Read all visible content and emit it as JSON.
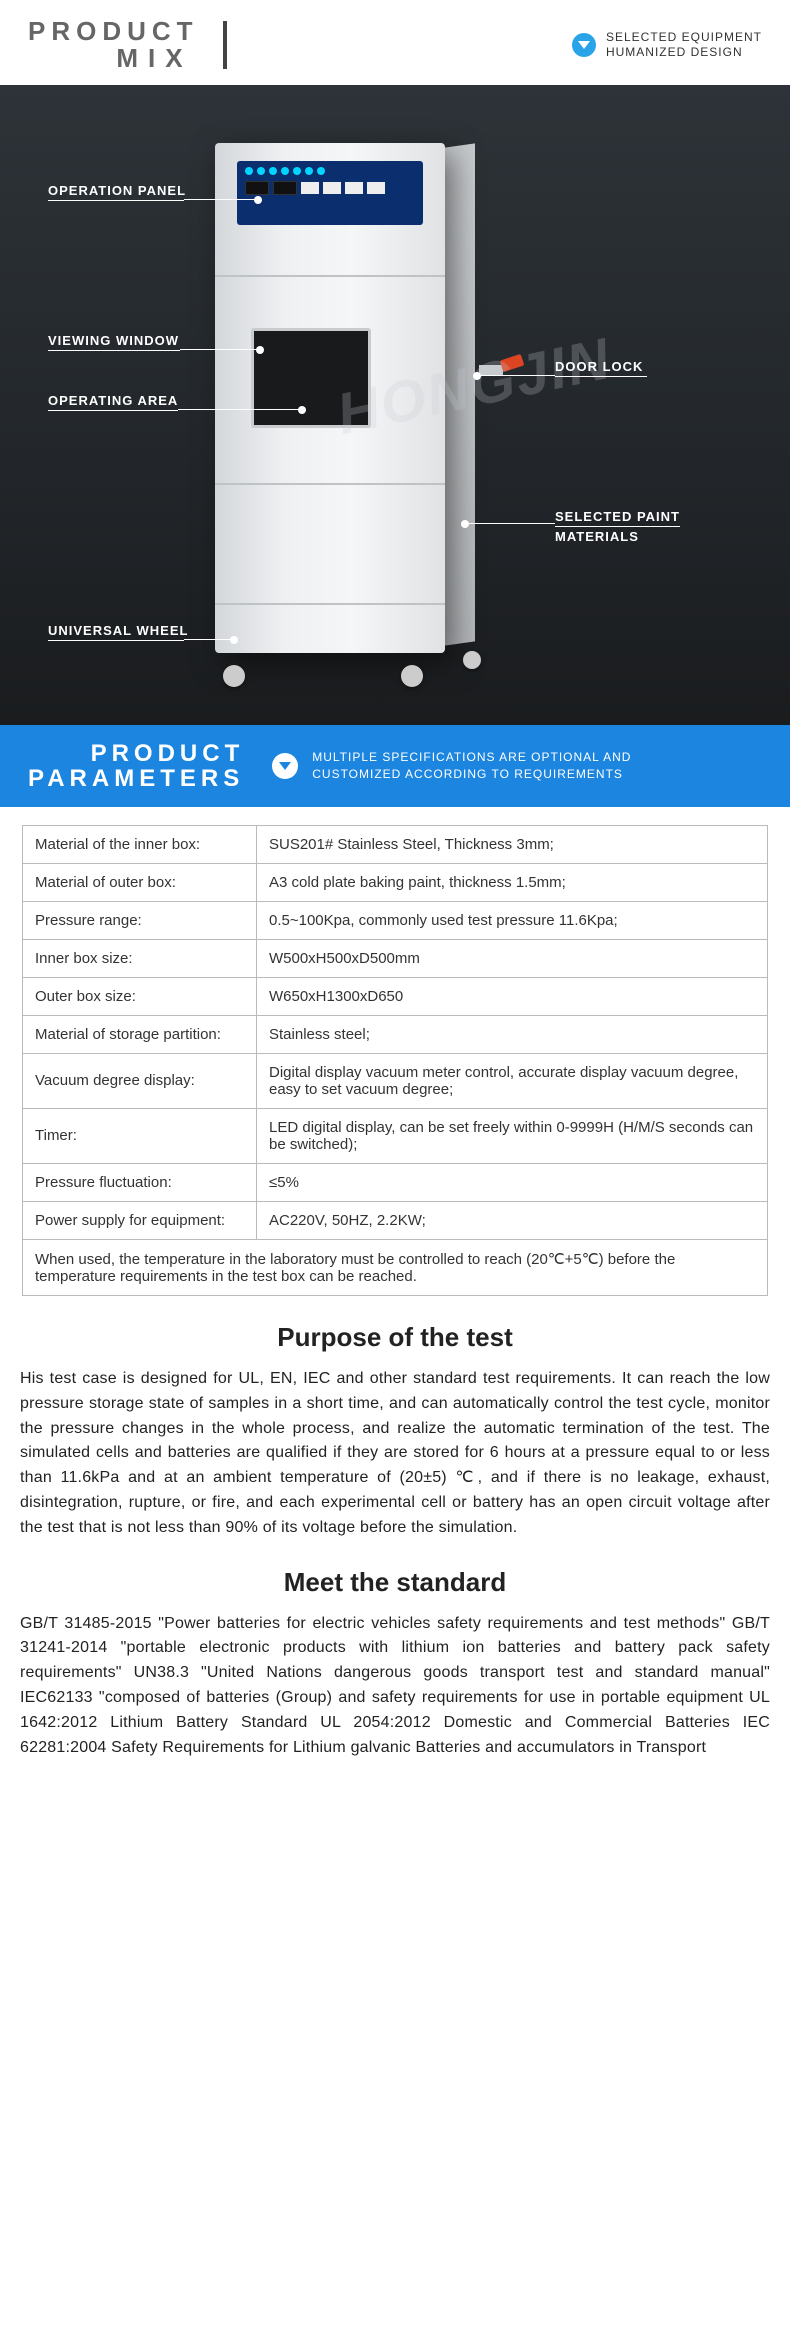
{
  "header_mix": {
    "title_line1": "PRODUCT",
    "title_line2": "MIX",
    "right_line1": "SELECTED EQUIPMENT",
    "right_line2": "HUMANIZED DESIGN"
  },
  "callouts": {
    "operation_panel": "OPERATION PANEL",
    "viewing_window": "VIEWING WINDOW",
    "operating_area": "OPERATING AREA",
    "universal_wheel": "UNIVERSAL WHEEL",
    "door_lock": "DOOR LOCK",
    "selected_paint": "SELECTED PAINT",
    "materials": "MATERIALS"
  },
  "watermark": "HONGJIN",
  "params_banner": {
    "title_line1": "PRODUCT",
    "title_line2": "PARAMETERS",
    "right_line1": "MULTIPLE SPECIFICATIONS ARE OPTIONAL AND",
    "right_line2": "CUSTOMIZED ACCORDING TO REQUIREMENTS"
  },
  "spec_table": {
    "columns": [
      "label",
      "value"
    ],
    "rows": [
      [
        "Material of the inner box:",
        "SUS201# Stainless Steel, Thickness 3mm;"
      ],
      [
        "Material of outer box:",
        "A3 cold plate baking paint, thickness 1.5mm;"
      ],
      [
        "Pressure range:",
        "0.5~100Kpa, commonly used test pressure 11.6Kpa;"
      ],
      [
        "Inner box size:",
        "W500xH500xD500mm"
      ],
      [
        "Outer box size:",
        "W650xH1300xD650"
      ],
      [
        "Material of storage partition:",
        "Stainless steel;"
      ],
      [
        "Vacuum degree display:",
        "Digital display vacuum meter control, accurate display vacuum degree, easy to set vacuum degree;"
      ],
      [
        "Timer:",
        "LED digital display, can be set freely within 0-9999H (H/M/S seconds can be switched);"
      ],
      [
        "Pressure fluctuation:",
        "≤5%"
      ],
      [
        "Power supply for equipment:",
        "AC220V, 50HZ, 2.2KW;"
      ]
    ],
    "note": "When used, the temperature in the laboratory must be controlled to reach (20℃+5℃) before the temperature requirements in the test box can be reached.",
    "cell_padding": 10,
    "key_col_width": 234,
    "border_color": "#bbbbbb",
    "font_size": 15
  },
  "purpose": {
    "title": "Purpose of the test",
    "body": "His test case is designed for UL, EN, IEC and other standard test requirements. It can reach the low pressure storage state of samples in a short time, and can automatically control the test cycle, monitor the pressure changes in the whole process, and realize the automatic termination of the test. The simulated cells and batteries are qualified if they are stored for 6 hours at a pressure equal to or less than 11.6kPa and at an ambient temperature of (20±5) ℃, and if there is no leakage, exhaust, disintegration, rupture, or fire, and each experimental cell or battery has an open circuit voltage after the test that is not less than 90% of its voltage before the simulation."
  },
  "standard": {
    "title": "Meet the standard",
    "body": "GB/T 31485-2015 \"Power batteries for electric vehicles safety requirements and test methods\" GB/T 31241-2014 \"portable electronic products with lithium ion batteries and battery pack safety requirements\" UN38.3 \"United Nations dangerous goods transport test and standard manual\" IEC62133 \"composed of batteries (Group) and safety requirements for use in portable equipment UL 1642:2012 Lithium Battery Standard UL 2054:2012 Domestic and Commercial Batteries IEC 62281:2004 Safety Requirements for Lithium galvanic Batteries and accumulators in Transport"
  },
  "colors": {
    "banner_blue": "#1b85e0",
    "badge_blue": "#2aa3e8",
    "stage_bg_top": "#2d3338",
    "stage_bg_bottom": "#1a1c1e",
    "machine_body": "#eef0f2",
    "panel_blue": "#0a2e6e"
  },
  "typography": {
    "header_title_fontsize": 26,
    "banner_title_fontsize": 24,
    "section_title_fontsize": 26,
    "body_fontsize": 16,
    "callout_fontsize": 13
  }
}
